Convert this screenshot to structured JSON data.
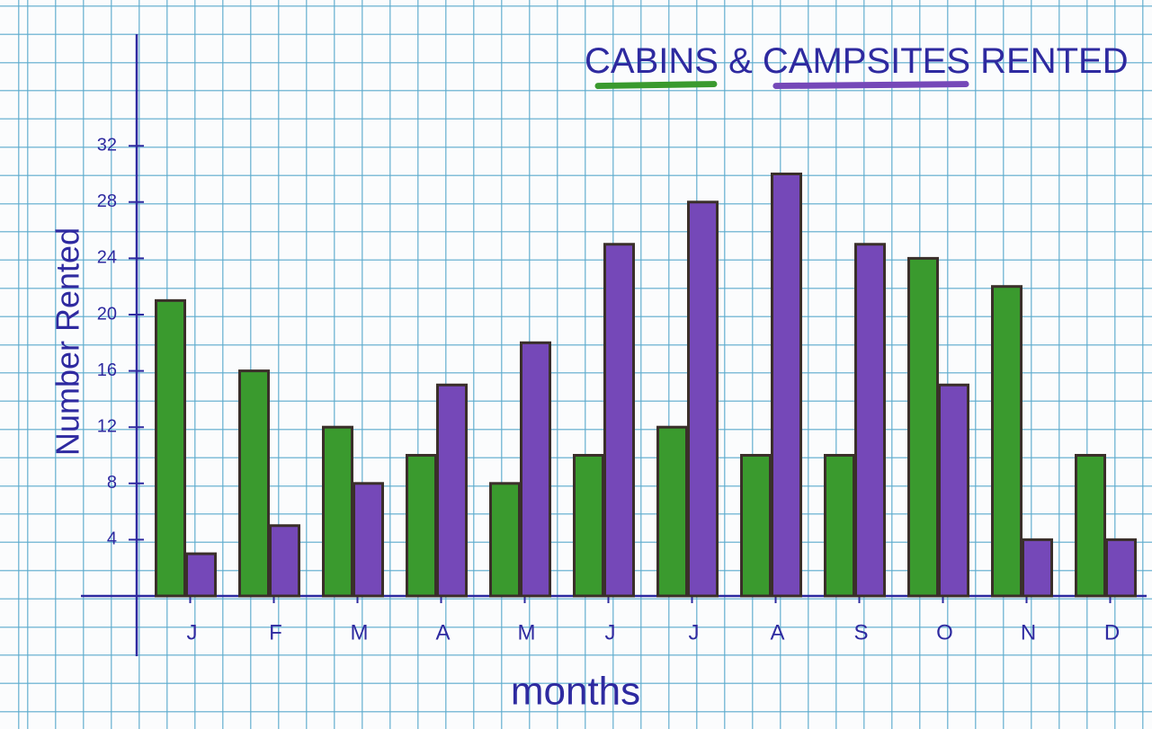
{
  "chart_data": {
    "type": "bar",
    "title_join": "&",
    "title_end": "RENTED",
    "x_label": "months",
    "y_label": "Number Rented",
    "categories": [
      "J",
      "F",
      "M",
      "A",
      "M",
      "J",
      "J",
      "A",
      "S",
      "O",
      "N",
      "D"
    ],
    "series": [
      {
        "name": "CABINS",
        "color": "#3a9a2e",
        "values": [
          21,
          16,
          12,
          10,
          8,
          10,
          12,
          10,
          10,
          24,
          22,
          10
        ]
      },
      {
        "name": "CAMPSITES",
        "color": "#7548b8",
        "values": [
          3,
          5,
          8,
          15,
          18,
          25,
          28,
          30,
          25,
          15,
          4,
          4
        ]
      }
    ],
    "ylim": [
      0,
      40
    ],
    "yticks": [
      4,
      8,
      12,
      16,
      20,
      24,
      28,
      32
    ],
    "grid": true
  }
}
